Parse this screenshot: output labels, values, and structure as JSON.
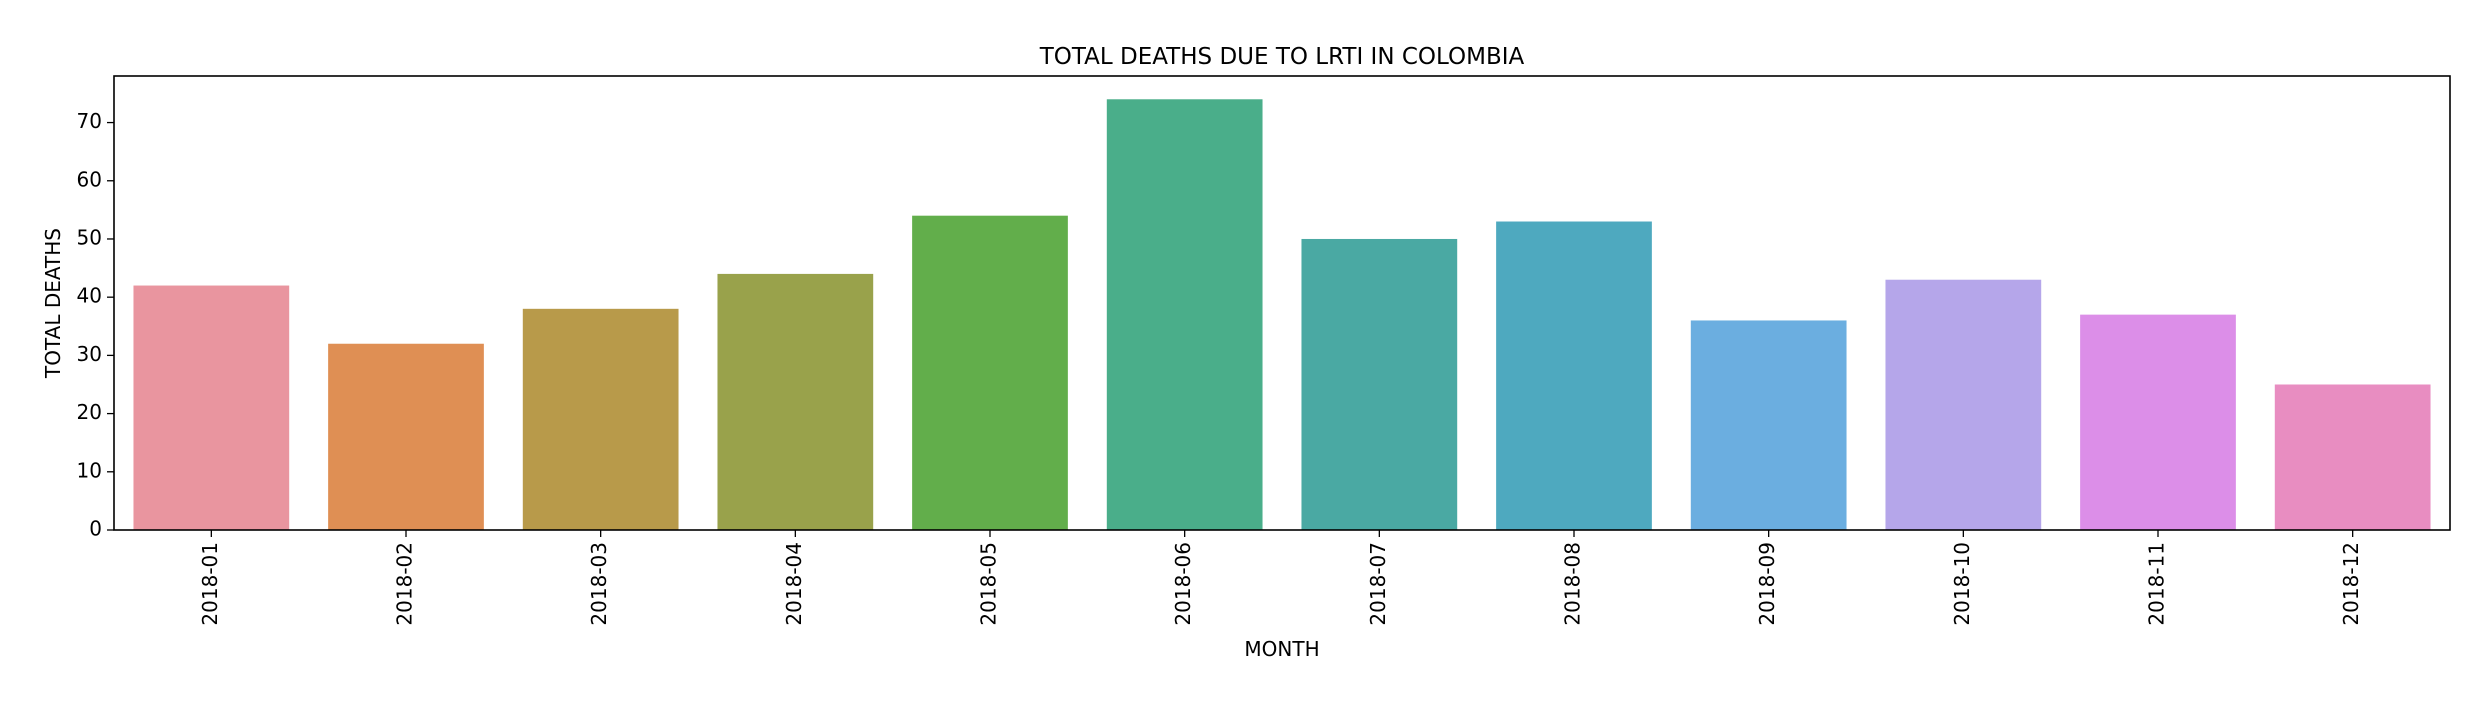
{
  "chart_data": {
    "type": "bar",
    "title": "TOTAL DEATHS DUE TO LRTI IN COLOMBIA",
    "xlabel": "MONTH",
    "ylabel": "TOTAL DEATHS",
    "categories": [
      "2018-01",
      "2018-02",
      "2018-03",
      "2018-04",
      "2018-05",
      "2018-06",
      "2018-07",
      "2018-08",
      "2018-09",
      "2018-10",
      "2018-11",
      "2018-12"
    ],
    "values": [
      42,
      32,
      38,
      44,
      54,
      74,
      50,
      53,
      36,
      43,
      37,
      25
    ],
    "colors": [
      "#e9959f",
      "#df8f54",
      "#b89a4a",
      "#99a24b",
      "#62ae4b",
      "#4aae8a",
      "#4aa9a3",
      "#4ea9bf",
      "#6baee0",
      "#b5a6ea",
      "#dc8ee8",
      "#e88dc1"
    ],
    "ylim": [
      0,
      78
    ],
    "yticks": [
      0,
      10,
      20,
      30,
      40,
      50,
      60,
      70
    ],
    "grid": false,
    "legend": false
  }
}
